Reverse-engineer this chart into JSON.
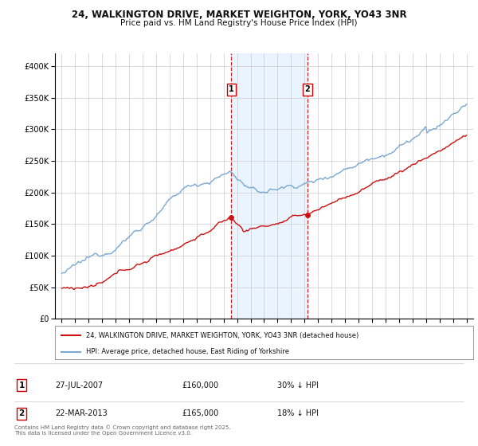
{
  "title_line1": "24, WALKINGTON DRIVE, MARKET WEIGHTON, YORK, YO43 3NR",
  "title_line2": "Price paid vs. HM Land Registry's House Price Index (HPI)",
  "background_color": "#ffffff",
  "plot_bg_color": "#ffffff",
  "grid_color": "#cccccc",
  "hpi_color": "#7aa8d4",
  "price_color": "#cc1111",
  "sale1_date_num": 2007.57,
  "sale1_price": 160000,
  "sale2_date_num": 2013.22,
  "sale2_price": 165000,
  "shade_color": "#ddeeff",
  "dashed_line_color": "#cc0000",
  "legend_price_label": "24, WALKINGTON DRIVE, MARKET WEIGHTON, YORK, YO43 3NR (detached house)",
  "legend_hpi_label": "HPI: Average price, detached house, East Riding of Yorkshire",
  "table_row1": [
    "1",
    "27-JUL-2007",
    "£160,000",
    "30% ↓ HPI"
  ],
  "table_row2": [
    "2",
    "22-MAR-2013",
    "£165,000",
    "18% ↓ HPI"
  ],
  "footnote": "Contains HM Land Registry data © Crown copyright and database right 2025.\nThis data is licensed under the Open Government Licence v3.0.",
  "ylim_min": 0,
  "ylim_max": 420000,
  "xlim_min": 1994.5,
  "xlim_max": 2025.5
}
